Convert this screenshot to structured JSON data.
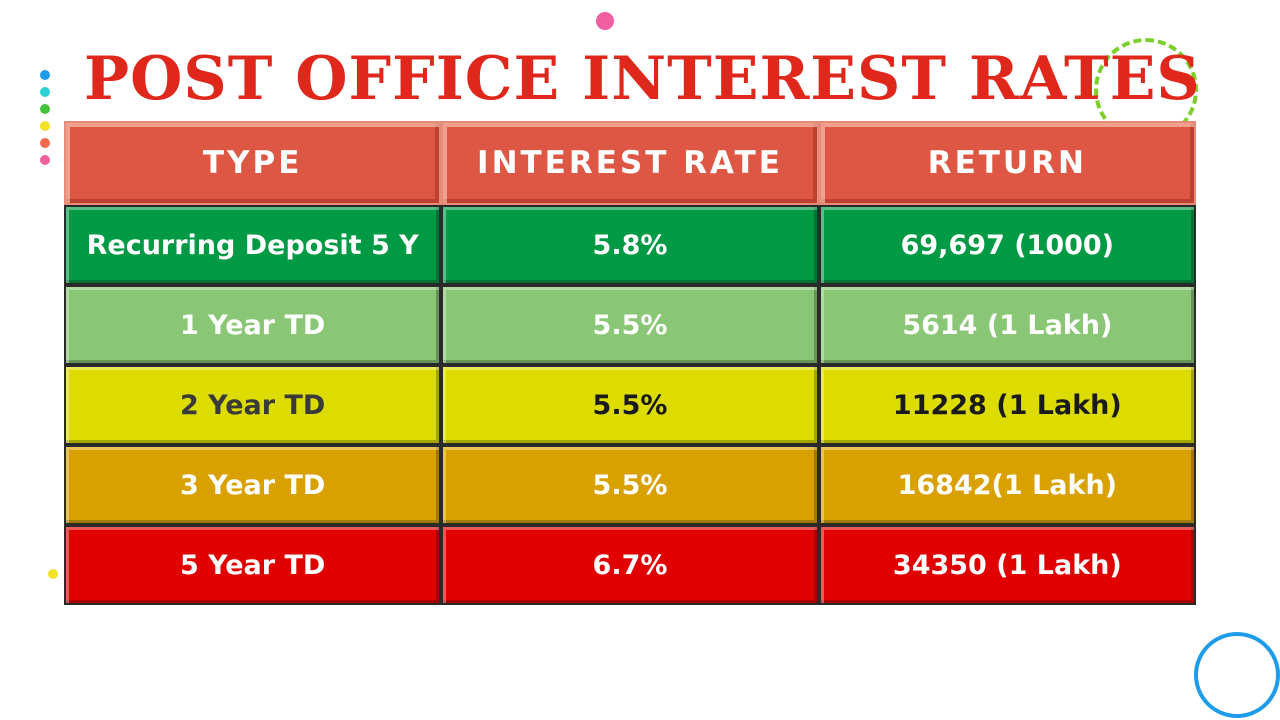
{
  "title": "POST OFFICE INTEREST RATES",
  "table": {
    "headers": [
      "TYPE",
      "INTEREST RATE",
      "RETURN"
    ],
    "rows": [
      {
        "type": "Recurring Deposit 5 Y",
        "rate": "5.8%",
        "return": "69,697 (1000)"
      },
      {
        "type": "1 Year TD",
        "rate": "5.5%",
        "return": "5614 (1 Lakh)"
      },
      {
        "type": "2 Year TD",
        "rate": "5.5%",
        "return": "11228 (1 Lakh)"
      },
      {
        "type": "3 Year TD",
        "rate": "5.5%",
        "return": "16842(1 Lakh)"
      },
      {
        "type": "5 Year TD",
        "rate": "6.7%",
        "return": "34350 (1 Lakh)"
      }
    ]
  },
  "colors": {
    "title": "#e0271b",
    "header": "#dd5744",
    "rows": [
      "#009a45",
      "#89c675",
      "#dcdc00",
      "#d9a100",
      "#e00000"
    ]
  }
}
